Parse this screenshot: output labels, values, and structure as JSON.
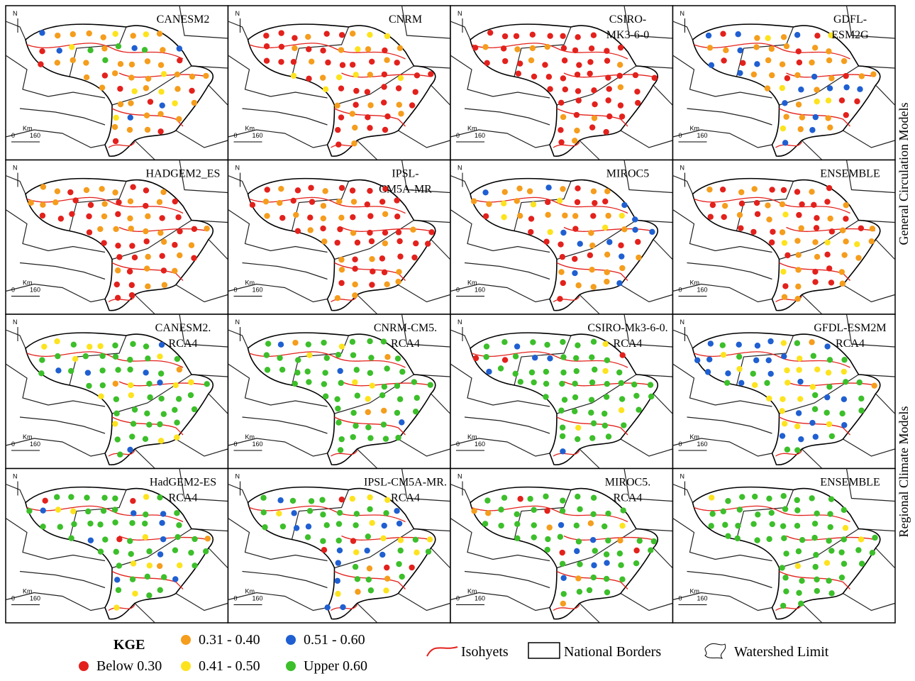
{
  "panels": [
    {
      "title": [
        "CANESM2"
      ]
    },
    {
      "title": [
        "CNRM"
      ]
    },
    {
      "title": [
        "CSIRO-",
        "MK3-6-0"
      ]
    },
    {
      "title": [
        "GDFL-",
        "ESM2G"
      ]
    },
    {
      "title": [
        "HADGEM2_ES"
      ]
    },
    {
      "title": [
        "IPSL-",
        "CM5A-MR"
      ]
    },
    {
      "title": [
        "MIROC5"
      ]
    },
    {
      "title": [
        "ENSEMBLE"
      ]
    },
    {
      "title": [
        "CANESM2.",
        "RCA4"
      ]
    },
    {
      "title": [
        "CNRM-CM5.",
        "RCA4"
      ]
    },
    {
      "title": [
        "CSIRO-Mk3-6-0.",
        "RCA4"
      ]
    },
    {
      "title": [
        "GFDL-ESM2M",
        "RCA4"
      ]
    },
    {
      "title": [
        "HadGEM2-ES",
        "RCA4"
      ]
    },
    {
      "title": [
        "IPSL-CM5A-MR.",
        "RCA4"
      ]
    },
    {
      "title": [
        "MIROC5.",
        "RCA4"
      ]
    },
    {
      "title": [
        "ENSEMBLE"
      ]
    }
  ],
  "scale": {
    "north": "N",
    "unit": "Km",
    "zero": "0",
    "max": "160"
  },
  "row_labels": [
    "General Circulation Models",
    "Regional Climate Models"
  ],
  "legend": {
    "title": "KGE",
    "classes": [
      {
        "label": "Below 0.30",
        "color": "#e3211c"
      },
      {
        "label": "0.31 - 0.40",
        "color": "#f59d1c"
      },
      {
        "label": "0.41 - 0.50",
        "color": "#fde31e"
      },
      {
        "label": "0.51 - 0.60",
        "color": "#1f5fd1"
      },
      {
        "label": "Upper 0.60",
        "color": "#3cbf2a"
      }
    ],
    "lines": [
      "Isohyets",
      "National Borders",
      "Watershed Limit"
    ]
  }
}
